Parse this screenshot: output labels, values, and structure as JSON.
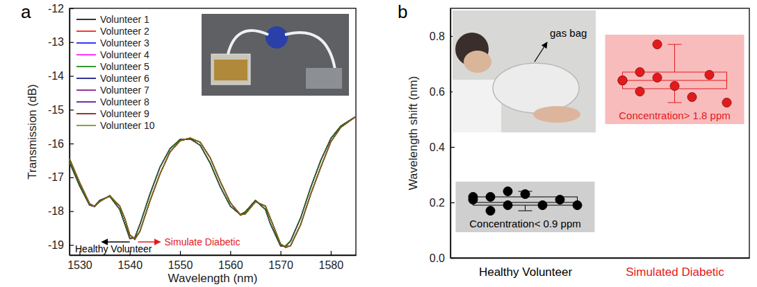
{
  "chart_data": [
    {
      "type": "line",
      "panel_label": "a",
      "x_label": "Wavelength (nm)",
      "y_label": "Transmission (dB)",
      "xlim": [
        1528,
        1585
      ],
      "ylim": [
        -19.3,
        -12
      ],
      "xticks": [
        1530,
        1540,
        1550,
        1560,
        1570,
        1580
      ],
      "yticks": [
        -19,
        -18,
        -17,
        -16,
        -15,
        -14,
        -13,
        -12
      ],
      "legend": "upper left",
      "x": [
        1528,
        1530,
        1532,
        1533,
        1534,
        1536,
        1538,
        1539,
        1540,
        1541,
        1542,
        1544,
        1546,
        1548,
        1550,
        1552,
        1554,
        1556,
        1558,
        1560,
        1562,
        1563,
        1565,
        1567,
        1568,
        1570,
        1571,
        1572,
        1574,
        1576,
        1578,
        1580,
        1582,
        1585
      ],
      "series": [
        {
          "name": "Volunteer 1",
          "color": "#000000",
          "values": [
            -16.55,
            -17.25,
            -17.82,
            -17.85,
            -17.68,
            -17.56,
            -17.95,
            -18.38,
            -18.8,
            -18.78,
            -18.4,
            -17.5,
            -16.7,
            -16.15,
            -15.88,
            -15.86,
            -16.05,
            -16.58,
            -17.28,
            -17.85,
            -18.1,
            -18.02,
            -17.68,
            -17.95,
            -18.38,
            -19.03,
            -19.03,
            -18.88,
            -18.2,
            -17.3,
            -16.5,
            -15.85,
            -15.48,
            -15.2
          ]
        },
        {
          "name": "Volunteer 2",
          "color": "#ff0000",
          "values": [
            -16.55,
            -17.25,
            -17.82,
            -17.85,
            -17.68,
            -17.56,
            -17.95,
            -18.38,
            -18.82,
            -18.78,
            -18.4,
            -17.5,
            -16.7,
            -16.15,
            -15.88,
            -15.86,
            -16.05,
            -16.58,
            -17.28,
            -17.85,
            -18.1,
            -18.02,
            -17.68,
            -17.95,
            -18.38,
            -19.03,
            -19.05,
            -18.88,
            -18.2,
            -17.3,
            -16.5,
            -15.85,
            -15.48,
            -15.2
          ]
        },
        {
          "name": "Volunteer 3",
          "color": "#0000ff",
          "values": [
            -16.55,
            -17.25,
            -17.82,
            -17.87,
            -17.68,
            -17.56,
            -17.95,
            -18.38,
            -18.8,
            -18.78,
            -18.4,
            -17.5,
            -16.7,
            -16.15,
            -15.88,
            -15.86,
            -16.05,
            -16.58,
            -17.28,
            -17.85,
            -18.1,
            -18.04,
            -17.68,
            -17.95,
            -18.38,
            -19.03,
            -19.03,
            -18.88,
            -18.2,
            -17.3,
            -16.5,
            -15.85,
            -15.48,
            -15.2
          ]
        },
        {
          "name": "Volunteer 4",
          "color": "#ff00ff",
          "values": [
            -16.55,
            -17.25,
            -17.82,
            -17.85,
            -17.68,
            -17.56,
            -17.95,
            -18.38,
            -18.8,
            -18.78,
            -18.4,
            -17.5,
            -16.7,
            -16.15,
            -15.88,
            -15.87,
            -16.05,
            -16.58,
            -17.28,
            -17.85,
            -18.1,
            -18.02,
            -17.68,
            -17.95,
            -18.38,
            -19.03,
            -19.03,
            -18.88,
            -18.2,
            -17.3,
            -16.5,
            -15.85,
            -15.48,
            -15.2
          ]
        },
        {
          "name": "Volunteer 5",
          "color": "#008000",
          "values": [
            -16.55,
            -17.25,
            -17.82,
            -17.85,
            -17.68,
            -17.56,
            -17.95,
            -18.38,
            -18.8,
            -18.8,
            -18.4,
            -17.5,
            -16.7,
            -16.15,
            -15.88,
            -15.86,
            -16.05,
            -16.58,
            -17.28,
            -17.85,
            -18.1,
            -18.02,
            -17.68,
            -17.95,
            -18.38,
            -19.03,
            -19.03,
            -18.88,
            -18.2,
            -17.3,
            -16.5,
            -15.85,
            -15.48,
            -15.2
          ]
        },
        {
          "name": "Volunteer 6",
          "color": "#000080",
          "values": [
            -16.45,
            -17.15,
            -17.78,
            -17.86,
            -17.72,
            -17.54,
            -17.85,
            -18.22,
            -18.7,
            -18.82,
            -18.6,
            -17.7,
            -16.9,
            -16.25,
            -15.92,
            -15.84,
            -15.96,
            -16.42,
            -17.12,
            -17.75,
            -18.1,
            -18.08,
            -17.72,
            -17.85,
            -18.22,
            -18.97,
            -19.06,
            -19.02,
            -18.4,
            -17.5,
            -16.7,
            -15.95,
            -15.52,
            -15.2
          ]
        },
        {
          "name": "Volunteer 7",
          "color": "#800080",
          "values": [
            -16.45,
            -17.15,
            -17.78,
            -17.86,
            -17.72,
            -17.54,
            -17.85,
            -18.22,
            -18.7,
            -18.84,
            -18.6,
            -17.7,
            -16.9,
            -16.25,
            -15.92,
            -15.84,
            -15.96,
            -16.42,
            -17.12,
            -17.75,
            -18.1,
            -18.08,
            -17.72,
            -17.85,
            -18.22,
            -18.97,
            -19.06,
            -19.02,
            -18.4,
            -17.5,
            -16.7,
            -15.95,
            -15.52,
            -15.2
          ]
        },
        {
          "name": "Volunteer 8",
          "color": "#4b0082",
          "values": [
            -16.45,
            -17.15,
            -17.78,
            -17.86,
            -17.72,
            -17.54,
            -17.85,
            -18.22,
            -18.7,
            -18.82,
            -18.6,
            -17.7,
            -16.9,
            -16.25,
            -15.92,
            -15.84,
            -15.96,
            -16.42,
            -17.12,
            -17.75,
            -18.1,
            -18.08,
            -17.72,
            -17.85,
            -18.22,
            -18.97,
            -19.08,
            -19.02,
            -18.4,
            -17.5,
            -16.7,
            -15.95,
            -15.52,
            -15.2
          ]
        },
        {
          "name": "Volunteer 9",
          "color": "#800000",
          "values": [
            -16.45,
            -17.15,
            -17.78,
            -17.86,
            -17.72,
            -17.54,
            -17.85,
            -18.22,
            -18.7,
            -18.82,
            -18.6,
            -17.7,
            -16.9,
            -16.25,
            -15.92,
            -15.84,
            -15.96,
            -16.42,
            -17.12,
            -17.75,
            -18.12,
            -18.08,
            -17.72,
            -17.85,
            -18.22,
            -18.97,
            -19.06,
            -19.02,
            -18.4,
            -17.5,
            -16.7,
            -15.95,
            -15.52,
            -15.2
          ]
        },
        {
          "name": "Volunteer 10",
          "color": "#808000",
          "values": [
            -16.45,
            -17.15,
            -17.78,
            -17.86,
            -17.72,
            -17.54,
            -17.85,
            -18.22,
            -18.7,
            -18.82,
            -18.6,
            -17.7,
            -16.9,
            -16.25,
            -15.92,
            -15.83,
            -15.96,
            -16.42,
            -17.12,
            -17.75,
            -18.1,
            -18.08,
            -17.72,
            -17.85,
            -18.22,
            -18.97,
            -19.06,
            -19.02,
            -18.4,
            -17.5,
            -16.7,
            -15.95,
            -15.52,
            -15.2
          ]
        }
      ],
      "annotations": [
        {
          "text": "Healthy Volunteer",
          "color": "#000000"
        },
        {
          "text": "Simulate Diabetic",
          "color": "#e31a1c"
        }
      ]
    },
    {
      "type": "box",
      "panel_label": "b",
      "y_label": "Wavelength shift (nm)",
      "categories": [
        "Healthy Volunteer",
        "Simulated Diabetic"
      ],
      "colors": [
        "#000000",
        "#e31a1c"
      ],
      "ylim": [
        0,
        0.9
      ],
      "yticks": [
        {
          "value": 0,
          "label": "0.0"
        },
        0.2,
        0.4,
        0.6,
        0.8
      ],
      "values": [
        [
          0.22,
          0.22,
          0.19,
          0.23,
          0.19,
          0.21,
          0.19,
          0.21,
          0.17,
          0.24
        ],
        [
          0.64,
          0.67,
          0.77,
          0.62,
          0.58,
          0.66,
          0.56,
          0.64,
          0.6,
          0.65
        ]
      ],
      "boxes": [
        {
          "low": 0.17,
          "q1": 0.19,
          "median": 0.2,
          "q3": 0.22,
          "high": 0.24
        },
        {
          "low": 0.56,
          "q1": 0.61,
          "median": 0.64,
          "q3": 0.67,
          "high": 0.77
        }
      ],
      "group_labels": [
        "Concentration< 0.9 ppm",
        "Concentration> 1.8 ppm"
      ],
      "inset_label": "gas bag"
    }
  ]
}
